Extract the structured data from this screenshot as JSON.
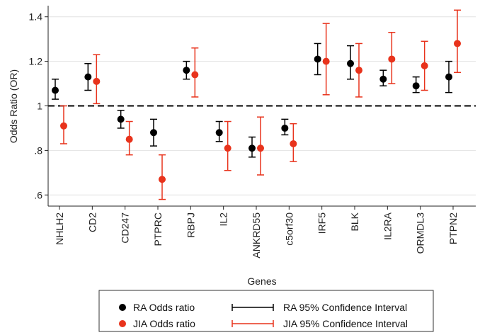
{
  "chart_data": {
    "type": "scatter",
    "xlabel": "Genes",
    "ylabel": "Odds Ratio (OR)",
    "ylim": [
      0.55,
      1.45
    ],
    "yticks": [
      {
        "value": 0.6,
        "label": ".6"
      },
      {
        "value": 0.8,
        "label": ".8"
      },
      {
        "value": 1.0,
        "label": "1"
      },
      {
        "value": 1.2,
        "label": "1.2"
      },
      {
        "value": 1.4,
        "label": "1.4"
      }
    ],
    "reference_line": 1.0,
    "grid": true,
    "categories": [
      "NHLH2",
      "CD2",
      "CD247",
      "PTPRC",
      "RBPJ",
      "IL2",
      "ANKRD55",
      "c5orf30",
      "IRF5",
      "BLK",
      "IL2RA",
      "ORMDL3",
      "PTPN2"
    ],
    "series": [
      {
        "name": "RA Odds ratio",
        "ci_name": "RA 95% Confidence Interval",
        "color": "#000000",
        "values": [
          1.07,
          1.13,
          0.94,
          0.88,
          1.16,
          0.88,
          0.81,
          0.9,
          1.21,
          1.19,
          1.12,
          1.09,
          1.13
        ],
        "ci_low": [
          1.03,
          1.07,
          0.9,
          0.82,
          1.12,
          0.84,
          0.77,
          0.87,
          1.14,
          1.12,
          1.09,
          1.06,
          1.06
        ],
        "ci_high": [
          1.12,
          1.19,
          0.98,
          0.94,
          1.2,
          0.93,
          0.86,
          0.94,
          1.28,
          1.27,
          1.16,
          1.13,
          1.2
        ]
      },
      {
        "name": "JIA Odds ratio",
        "ci_name": "JIA 95% Confidence Interval",
        "color": "#e8331c",
        "values": [
          0.91,
          1.11,
          0.85,
          0.67,
          1.14,
          0.81,
          0.81,
          0.83,
          1.2,
          1.16,
          1.21,
          1.18,
          1.28
        ],
        "ci_low": [
          0.83,
          1.01,
          0.78,
          0.58,
          1.04,
          0.71,
          0.69,
          0.75,
          1.05,
          1.04,
          1.1,
          1.07,
          1.15
        ],
        "ci_high": [
          1.0,
          1.23,
          0.93,
          0.78,
          1.26,
          0.93,
          0.95,
          0.92,
          1.37,
          1.28,
          1.33,
          1.29,
          1.43
        ]
      }
    ],
    "legend_position": "bottom"
  }
}
